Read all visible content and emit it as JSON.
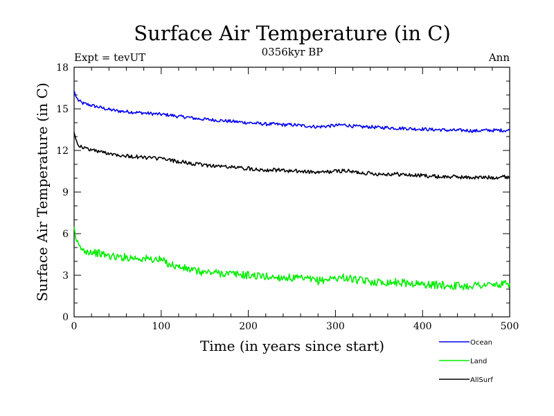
{
  "chart_data": {
    "type": "line",
    "title": "Surface Air Temperature (in C)",
    "subtitle": "0356kyr BP",
    "left_label": "Expt = tevUT",
    "right_label": "Ann",
    "xlabel": "Time (in years since start)",
    "ylabel": "Surface Air Temperature (in C)",
    "xlim": [
      0,
      500
    ],
    "ylim": [
      0,
      18
    ],
    "xticks": [
      0,
      100,
      200,
      300,
      400,
      500
    ],
    "yticks": [
      0,
      3,
      6,
      9,
      12,
      15,
      18
    ],
    "grid": false,
    "legend_position": "bottom-right",
    "series": [
      {
        "name": "Ocean",
        "color": "#0000ee",
        "x": [
          0,
          2,
          5,
          10,
          20,
          30,
          40,
          50,
          60,
          70,
          80,
          90,
          100,
          110,
          120,
          130,
          140,
          150,
          160,
          170,
          180,
          190,
          200,
          210,
          220,
          230,
          240,
          250,
          260,
          270,
          280,
          290,
          300,
          310,
          320,
          330,
          340,
          350,
          360,
          370,
          380,
          390,
          400,
          410,
          420,
          430,
          440,
          450,
          460,
          470,
          480,
          490,
          500
        ],
        "y": [
          16.3,
          15.9,
          15.6,
          15.4,
          15.25,
          15.1,
          14.95,
          14.85,
          14.8,
          14.75,
          14.7,
          14.65,
          14.6,
          14.55,
          14.45,
          14.4,
          14.3,
          14.25,
          14.2,
          14.15,
          14.1,
          14.05,
          14.0,
          13.95,
          13.9,
          13.9,
          13.85,
          13.85,
          13.8,
          13.75,
          13.7,
          13.75,
          13.8,
          13.85,
          13.75,
          13.7,
          13.7,
          13.65,
          13.65,
          13.6,
          13.6,
          13.55,
          13.55,
          13.5,
          13.5,
          13.45,
          13.45,
          13.45,
          13.4,
          13.45,
          13.45,
          13.45,
          13.45
        ]
      },
      {
        "name": "Land",
        "color": "#00ee00",
        "x": [
          0,
          2,
          5,
          10,
          20,
          30,
          40,
          50,
          60,
          70,
          80,
          90,
          100,
          110,
          120,
          130,
          140,
          150,
          160,
          170,
          180,
          190,
          200,
          210,
          220,
          230,
          240,
          250,
          260,
          270,
          280,
          290,
          300,
          310,
          320,
          330,
          340,
          350,
          360,
          370,
          380,
          390,
          400,
          410,
          420,
          430,
          440,
          450,
          460,
          470,
          480,
          490,
          500
        ],
        "y": [
          6.5,
          5.6,
          5.1,
          4.8,
          4.7,
          4.55,
          4.4,
          4.3,
          4.3,
          4.25,
          4.2,
          4.15,
          4.1,
          3.8,
          3.6,
          3.45,
          3.3,
          3.2,
          3.2,
          3.15,
          3.1,
          3.05,
          3.0,
          2.95,
          2.9,
          2.85,
          2.85,
          2.8,
          2.75,
          2.7,
          2.6,
          2.7,
          2.8,
          2.85,
          2.7,
          2.6,
          2.55,
          2.5,
          2.5,
          2.5,
          2.45,
          2.4,
          2.35,
          2.3,
          2.3,
          2.25,
          2.25,
          2.2,
          2.3,
          2.3,
          2.3,
          2.3,
          2.4
        ]
      },
      {
        "name": "AllSurf",
        "color": "#000000",
        "x": [
          0,
          2,
          5,
          10,
          20,
          30,
          40,
          50,
          60,
          70,
          80,
          90,
          100,
          110,
          120,
          130,
          140,
          150,
          160,
          170,
          180,
          190,
          200,
          210,
          220,
          230,
          240,
          250,
          260,
          270,
          280,
          290,
          300,
          310,
          320,
          330,
          340,
          350,
          360,
          370,
          380,
          390,
          400,
          410,
          420,
          430,
          440,
          450,
          460,
          470,
          480,
          490,
          500
        ],
        "y": [
          13.3,
          12.8,
          12.4,
          12.2,
          12.05,
          11.9,
          11.8,
          11.7,
          11.6,
          11.55,
          11.5,
          11.45,
          11.4,
          11.3,
          11.2,
          11.1,
          11.0,
          10.95,
          10.9,
          10.85,
          10.8,
          10.75,
          10.7,
          10.65,
          10.6,
          10.6,
          10.55,
          10.5,
          10.5,
          10.45,
          10.4,
          10.45,
          10.5,
          10.55,
          10.45,
          10.4,
          10.35,
          10.3,
          10.3,
          10.3,
          10.25,
          10.2,
          10.2,
          10.15,
          10.1,
          10.1,
          10.1,
          10.05,
          10.05,
          10.05,
          10.05,
          10.1,
          10.1
        ]
      }
    ]
  }
}
